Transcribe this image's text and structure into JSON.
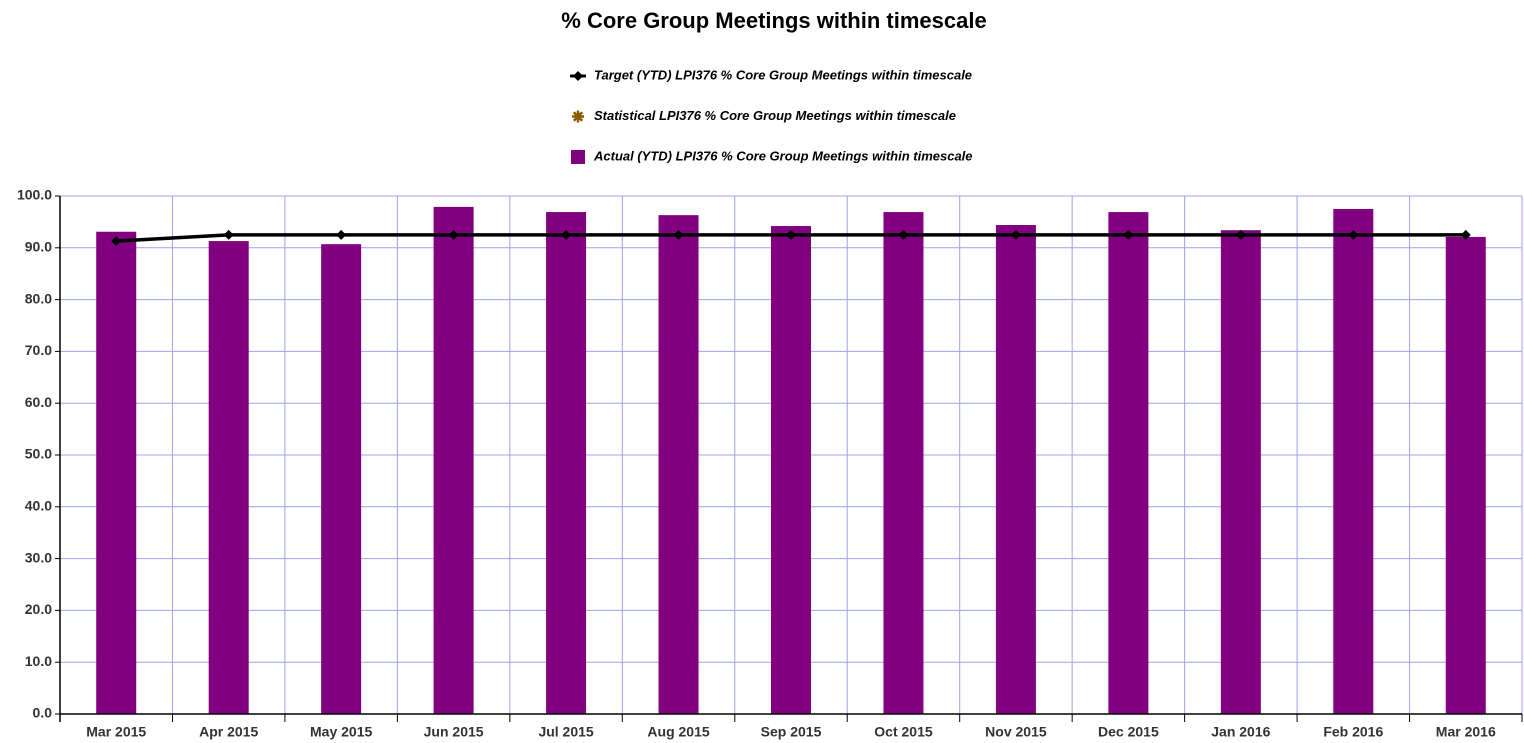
{
  "chart_data": {
    "type": "bar",
    "title": "% Core Group Meetings within timescale",
    "categories": [
      "Mar 2015",
      "Apr 2015",
      "May 2015",
      "Jun 2015",
      "Jul 2015",
      "Aug 2015",
      "Sep 2015",
      "Oct 2015",
      "Nov 2015",
      "Dec 2015",
      "Jan 2016",
      "Feb 2016",
      "Mar 2016"
    ],
    "series": [
      {
        "name": "Target (YTD) LPI376 % Core Group Meetings within timescale",
        "type": "line",
        "marker": "diamond",
        "color": "#000000",
        "values": [
          91.3,
          92.5,
          92.5,
          92.5,
          92.5,
          92.5,
          92.5,
          92.5,
          92.5,
          92.5,
          92.5,
          92.5,
          92.5
        ]
      },
      {
        "name": "Statistical LPI376 % Core Group Meetings within timescale",
        "type": "line",
        "marker": "star",
        "color": "#8b5a00",
        "values": [
          null,
          null,
          null,
          null,
          null,
          null,
          null,
          null,
          null,
          null,
          null,
          null,
          null
        ]
      },
      {
        "name": "Actual (YTD) LPI376 % Core Group Meetings within timescale",
        "type": "bar",
        "marker": "square",
        "color": "#800080",
        "values": [
          93.1,
          91.3,
          90.7,
          97.9,
          96.9,
          96.3,
          94.2,
          96.9,
          94.4,
          96.9,
          93.4,
          97.5,
          92.1
        ]
      }
    ],
    "ylim": [
      0,
      100
    ],
    "yticks": [
      {
        "value": 0,
        "label": "0.0"
      },
      {
        "value": 10,
        "label": "10.0"
      },
      {
        "value": 20,
        "label": "20.0"
      },
      {
        "value": 30,
        "label": "30.0"
      },
      {
        "value": 40,
        "label": "40.0"
      },
      {
        "value": 50,
        "label": "50.0"
      },
      {
        "value": 60,
        "label": "60.0"
      },
      {
        "value": 70,
        "label": "70.0"
      },
      {
        "value": 80,
        "label": "80.0"
      },
      {
        "value": 90,
        "label": "90.0"
      },
      {
        "value": 100,
        "label": "100.0"
      }
    ],
    "grid": true,
    "grid_color": "#a0a0f0"
  }
}
